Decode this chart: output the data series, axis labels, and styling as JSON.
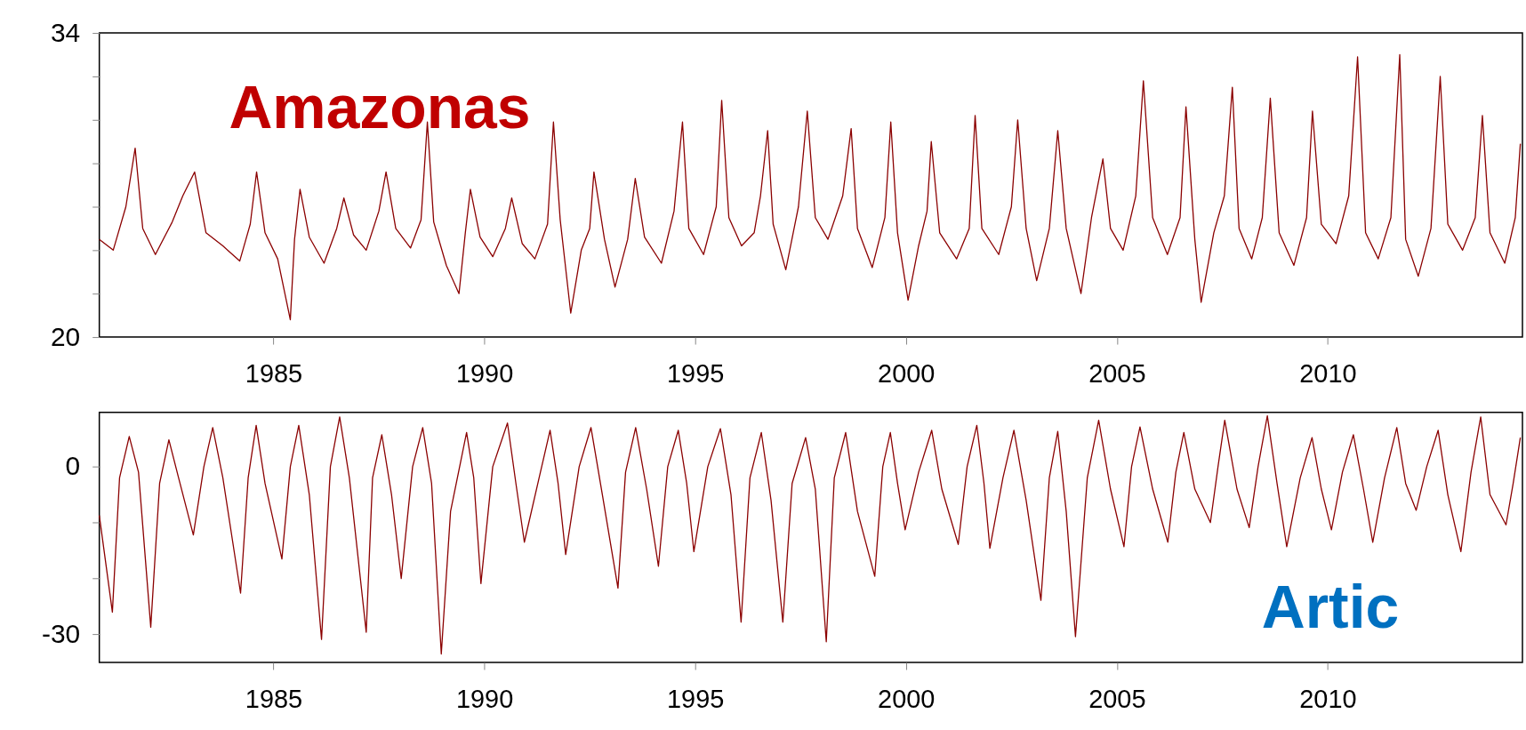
{
  "chart_data": [
    {
      "type": "line",
      "xlim": [
        1980.87,
        2014.62
      ],
      "ylim": [
        20,
        34
      ],
      "xticks": [
        1985,
        1990,
        1995,
        2000,
        2005,
        2010
      ],
      "yticks": [
        20,
        {
          "value": 22,
          "label": null
        },
        {
          "value": 24,
          "label": null
        },
        {
          "value": 26,
          "label": null
        },
        {
          "value": 28,
          "label": null
        },
        {
          "value": 30,
          "label": null
        },
        {
          "value": 32,
          "label": null
        },
        34
      ],
      "grid": false,
      "x": [
        1980.87,
        1981.2,
        1981.5,
        1981.72,
        1981.9,
        1982.2,
        1982.6,
        1982.85,
        1983.13,
        1983.4,
        1983.8,
        1984.2,
        1984.45,
        1984.6,
        1984.8,
        1985.1,
        1985.4,
        1985.5,
        1985.63,
        1985.85,
        1986.2,
        1986.5,
        1986.67,
        1986.9,
        1987.2,
        1987.5,
        1987.67,
        1987.9,
        1988.25,
        1988.5,
        1988.65,
        1988.8,
        1989.1,
        1989.4,
        1989.55,
        1989.67,
        1989.9,
        1990.2,
        1990.5,
        1990.65,
        1990.9,
        1991.2,
        1991.5,
        1991.64,
        1991.8,
        1992.05,
        1992.3,
        1992.5,
        1992.6,
        1992.85,
        1993.1,
        1993.4,
        1993.58,
        1993.8,
        1994.2,
        1994.5,
        1994.7,
        1994.85,
        1995.2,
        1995.5,
        1995.63,
        1995.8,
        1996.1,
        1996.4,
        1996.55,
        1996.72,
        1996.85,
        1997.15,
        1997.45,
        1997.66,
        1997.85,
        1998.15,
        1998.5,
        1998.7,
        1998.85,
        1999.2,
        1999.5,
        1999.64,
        1999.8,
        2000.05,
        2000.3,
        2000.5,
        2000.6,
        2000.8,
        2001.2,
        2001.5,
        2001.64,
        2001.8,
        2002.2,
        2002.5,
        2002.65,
        2002.85,
        2003.1,
        2003.4,
        2003.6,
        2003.8,
        2004.15,
        2004.4,
        2004.67,
        2004.85,
        2005.15,
        2005.45,
        2005.63,
        2005.85,
        2006.2,
        2006.5,
        2006.64,
        2006.85,
        2007.0,
        2007.3,
        2007.55,
        2007.74,
        2007.9,
        2008.2,
        2008.45,
        2008.64,
        2008.85,
        2009.2,
        2009.5,
        2009.64,
        2009.85,
        2010.2,
        2010.5,
        2010.71,
        2010.9,
        2011.2,
        2011.5,
        2011.71,
        2011.85,
        2012.15,
        2012.45,
        2012.67,
        2012.85,
        2013.2,
        2013.5,
        2013.67,
        2013.85,
        2014.2,
        2014.45,
        2014.57
      ],
      "series": [
        {
          "name": "Amazonas",
          "color": "#8b0000",
          "values": [
            24.5,
            24.0,
            26.0,
            28.7,
            25.0,
            23.8,
            25.3,
            26.5,
            27.6,
            24.8,
            24.2,
            23.5,
            25.2,
            27.6,
            24.8,
            23.6,
            20.8,
            24.5,
            26.8,
            24.6,
            23.4,
            25.0,
            26.4,
            24.7,
            24.0,
            25.8,
            27.6,
            25.0,
            24.1,
            25.4,
            29.9,
            25.3,
            23.3,
            22.0,
            24.8,
            26.8,
            24.6,
            23.7,
            25.0,
            26.4,
            24.3,
            23.6,
            25.2,
            29.9,
            25.4,
            21.1,
            24.0,
            25.0,
            27.6,
            24.5,
            22.3,
            24.5,
            27.3,
            24.6,
            23.4,
            25.8,
            29.9,
            25.0,
            23.8,
            26.0,
            30.9,
            25.5,
            24.2,
            24.8,
            26.5,
            29.5,
            25.2,
            23.1,
            26.0,
            30.4,
            25.5,
            24.5,
            26.5,
            29.6,
            25.0,
            23.2,
            25.5,
            29.9,
            24.8,
            21.7,
            24.2,
            25.8,
            29.0,
            24.8,
            23.6,
            25.0,
            30.2,
            25.0,
            23.8,
            26.0,
            30.0,
            25.0,
            22.6,
            25.0,
            29.5,
            25.0,
            22.0,
            25.5,
            28.2,
            25.0,
            24.0,
            26.5,
            31.8,
            25.5,
            23.8,
            25.5,
            30.6,
            24.5,
            21.6,
            24.8,
            26.5,
            31.5,
            25.0,
            23.6,
            25.5,
            31.0,
            24.8,
            23.3,
            25.5,
            30.4,
            25.2,
            24.3,
            26.5,
            32.9,
            24.8,
            23.6,
            25.5,
            33.0,
            24.5,
            22.8,
            25.0,
            32.0,
            25.2,
            24.0,
            25.5,
            30.2,
            24.8,
            23.4,
            25.5,
            28.9
          ]
        }
      ]
    },
    {
      "type": "line",
      "xlim": [
        1980.87,
        2014.62
      ],
      "ylim": [
        -35,
        9.7
      ],
      "xticks": [
        1985,
        1990,
        1995,
        2000,
        2005,
        2010
      ],
      "yticks": [
        -30,
        {
          "value": -20,
          "label": null
        },
        {
          "value": -10,
          "label": null
        },
        0
      ],
      "grid": false,
      "x": [
        1980.87,
        1981.18,
        1981.35,
        1981.58,
        1981.8,
        1982.09,
        1982.3,
        1982.52,
        1982.75,
        1983.1,
        1983.35,
        1983.56,
        1983.8,
        1984.22,
        1984.4,
        1984.59,
        1984.8,
        1985.2,
        1985.4,
        1985.6,
        1985.85,
        1986.14,
        1986.35,
        1986.57,
        1986.8,
        1987.2,
        1987.35,
        1987.57,
        1987.8,
        1988.03,
        1988.3,
        1988.54,
        1988.75,
        1988.98,
        1989.2,
        1989.58,
        1989.75,
        1989.92,
        1990.2,
        1990.55,
        1990.75,
        1990.95,
        1991.3,
        1991.56,
        1991.75,
        1991.93,
        1992.25,
        1992.53,
        1992.8,
        1993.17,
        1993.35,
        1993.59,
        1993.85,
        1994.13,
        1994.35,
        1994.6,
        1994.8,
        1994.97,
        1995.3,
        1995.6,
        1995.85,
        1996.09,
        1996.3,
        1996.57,
        1996.8,
        1997.08,
        1997.3,
        1997.62,
        1997.85,
        1998.11,
        1998.3,
        1998.57,
        1998.85,
        1999.26,
        1999.45,
        1999.63,
        1999.8,
        1999.98,
        2000.3,
        2000.61,
        2000.85,
        2001.24,
        2001.45,
        2001.68,
        2001.85,
        2001.99,
        2002.3,
        2002.56,
        2002.85,
        2003.2,
        2003.4,
        2003.6,
        2003.8,
        2004.02,
        2004.3,
        2004.57,
        2004.85,
        2005.17,
        2005.35,
        2005.55,
        2005.85,
        2006.21,
        2006.4,
        2006.59,
        2006.85,
        2007.22,
        2007.4,
        2007.56,
        2007.85,
        2008.14,
        2008.35,
        2008.57,
        2008.8,
        2009.03,
        2009.35,
        2009.63,
        2009.85,
        2010.09,
        2010.35,
        2010.61,
        2010.85,
        2011.07,
        2011.35,
        2011.64,
        2011.85,
        2012.1,
        2012.35,
        2012.62,
        2012.85,
        2013.16,
        2013.4,
        2013.63,
        2013.85,
        2014.23,
        2014.4,
        2014.57
      ],
      "series": [
        {
          "name": "Artic",
          "color": "#8b0000",
          "values": [
            -8.7,
            -26,
            -2,
            5.4,
            -1,
            -28.7,
            -3,
            4.8,
            -2,
            -12.2,
            0,
            7.0,
            -2,
            -22.6,
            -2,
            7.4,
            -3,
            -16.5,
            0,
            7.4,
            -5,
            -30.9,
            0,
            8.9,
            -2,
            -29.6,
            -2,
            5.7,
            -5,
            -20,
            0,
            7.0,
            -3,
            -33.5,
            -8,
            6.1,
            -2,
            -20.9,
            0,
            7.8,
            -3,
            -13.5,
            -2,
            6.5,
            -3,
            -15.7,
            0,
            7.0,
            -5,
            -21.7,
            -1,
            7.0,
            -4,
            -17.8,
            0,
            6.5,
            -3,
            -15.2,
            0,
            6.8,
            -5,
            -27.8,
            -2,
            6.1,
            -6,
            -27.8,
            -3,
            5.2,
            -4,
            -31.3,
            -2,
            6.1,
            -8,
            -19.6,
            0,
            6.1,
            -3,
            -11.3,
            -1,
            6.5,
            -4,
            -13.9,
            0,
            7.4,
            -3,
            -14.6,
            -2,
            6.5,
            -6,
            -23.9,
            -2,
            6.3,
            -8,
            -30.4,
            -2,
            8.3,
            -4,
            -14.3,
            0,
            7.1,
            -4,
            -13.5,
            -1,
            6.1,
            -4,
            -10,
            0,
            8.3,
            -4,
            -10.9,
            0,
            9.1,
            -3,
            -14.3,
            -2,
            5.2,
            -4,
            -11.3,
            -1,
            5.7,
            -4,
            -13.5,
            -2,
            7.0,
            -3,
            -7.8,
            0,
            6.5,
            -5,
            -15.2,
            -1,
            8.9,
            -5,
            -10.4,
            -3,
            5.2
          ]
        }
      ]
    }
  ]
}
